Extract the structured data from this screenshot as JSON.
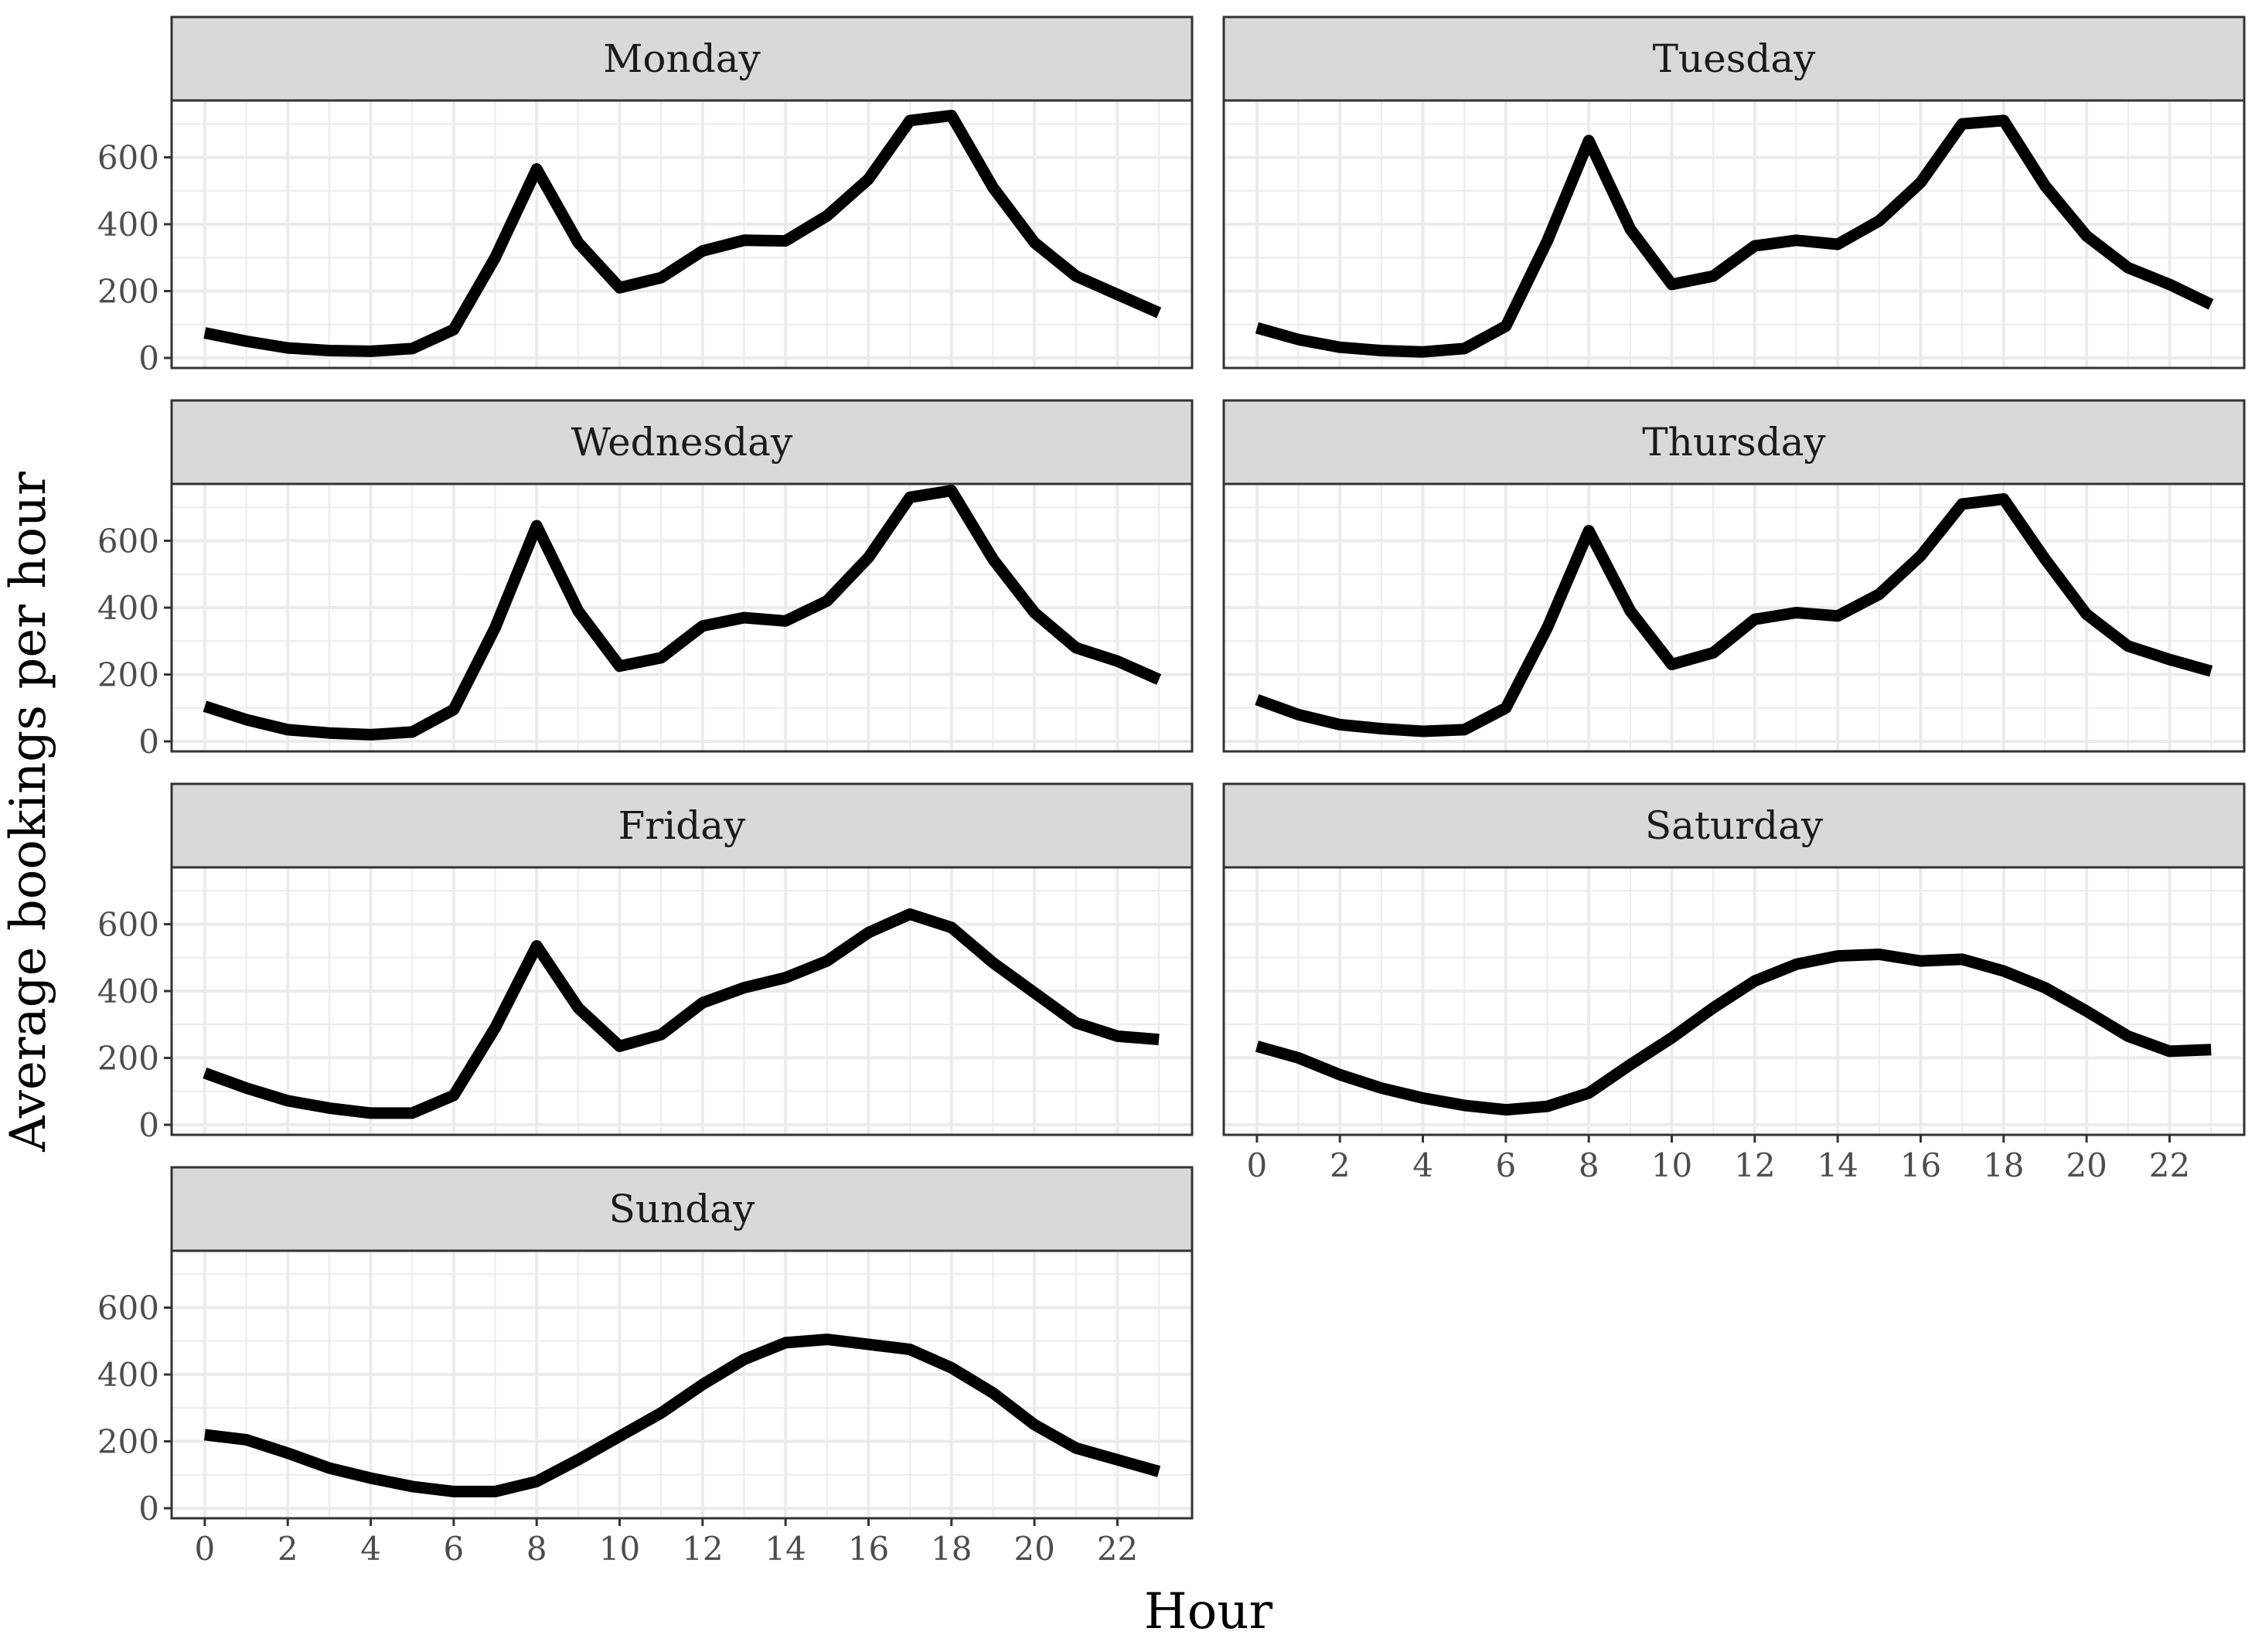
{
  "chart_data": {
    "type": "line",
    "xlabel": "Hour",
    "ylabel": "Average bookings per hour",
    "xlim": [
      -0.8,
      23.8
    ],
    "ylim": [
      -30,
      770
    ],
    "x_ticks": [
      0,
      2,
      4,
      6,
      8,
      10,
      12,
      14,
      16,
      18,
      20,
      22
    ],
    "y_ticks": [
      0,
      200,
      400,
      600
    ],
    "grid": true,
    "legend": "none",
    "x": [
      0,
      1,
      2,
      3,
      4,
      5,
      6,
      7,
      8,
      9,
      10,
      11,
      12,
      13,
      14,
      15,
      16,
      17,
      18,
      19,
      20,
      21,
      22,
      23
    ],
    "series": [
      {
        "name": "Monday",
        "color": "#000000",
        "values": [
          75,
          50,
          30,
          22,
          20,
          28,
          85,
          300,
          565,
          345,
          210,
          240,
          320,
          352,
          350,
          425,
          535,
          710,
          725,
          510,
          345,
          245,
          190,
          135
        ]
      },
      {
        "name": "Tuesday",
        "color": "#000000",
        "values": [
          90,
          55,
          32,
          22,
          18,
          28,
          95,
          350,
          650,
          385,
          220,
          245,
          335,
          352,
          340,
          410,
          525,
          700,
          710,
          515,
          365,
          270,
          220,
          160
        ]
      },
      {
        "name": "Wednesday",
        "color": "#000000",
        "values": [
          105,
          65,
          35,
          25,
          20,
          28,
          95,
          340,
          645,
          390,
          225,
          250,
          345,
          370,
          360,
          420,
          550,
          730,
          750,
          545,
          385,
          280,
          240,
          185
        ]
      },
      {
        "name": "Thursday",
        "color": "#000000",
        "values": [
          125,
          80,
          50,
          38,
          30,
          35,
          100,
          340,
          630,
          390,
          230,
          265,
          365,
          385,
          375,
          440,
          555,
          710,
          725,
          545,
          380,
          285,
          245,
          210
        ]
      },
      {
        "name": "Friday",
        "color": "#000000",
        "values": [
          155,
          110,
          72,
          50,
          35,
          35,
          88,
          290,
          535,
          350,
          235,
          270,
          365,
          410,
          440,
          490,
          575,
          630,
          590,
          485,
          395,
          305,
          265,
          255
        ]
      },
      {
        "name": "Saturday",
        "color": "#000000",
        "values": [
          235,
          200,
          150,
          110,
          80,
          58,
          45,
          55,
          95,
          180,
          260,
          350,
          430,
          480,
          505,
          510,
          490,
          495,
          460,
          410,
          340,
          265,
          220,
          225
        ]
      },
      {
        "name": "Sunday",
        "color": "#000000",
        "values": [
          220,
          205,
          165,
          120,
          90,
          65,
          50,
          50,
          80,
          145,
          215,
          285,
          370,
          445,
          495,
          505,
          490,
          475,
          420,
          345,
          250,
          180,
          145,
          110
        ]
      }
    ],
    "panel_titles": [
      "Monday",
      "Tuesday",
      "Wednesday",
      "Thursday",
      "Friday",
      "Saturday",
      "Sunday"
    ]
  },
  "colors": {
    "strip_background": "#d9d9d9",
    "panel_border": "#333333",
    "grid_major": "#ebebeb",
    "line": "#000000",
    "tick_label": "#4d4d4d",
    "axis_title": "#000000"
  }
}
